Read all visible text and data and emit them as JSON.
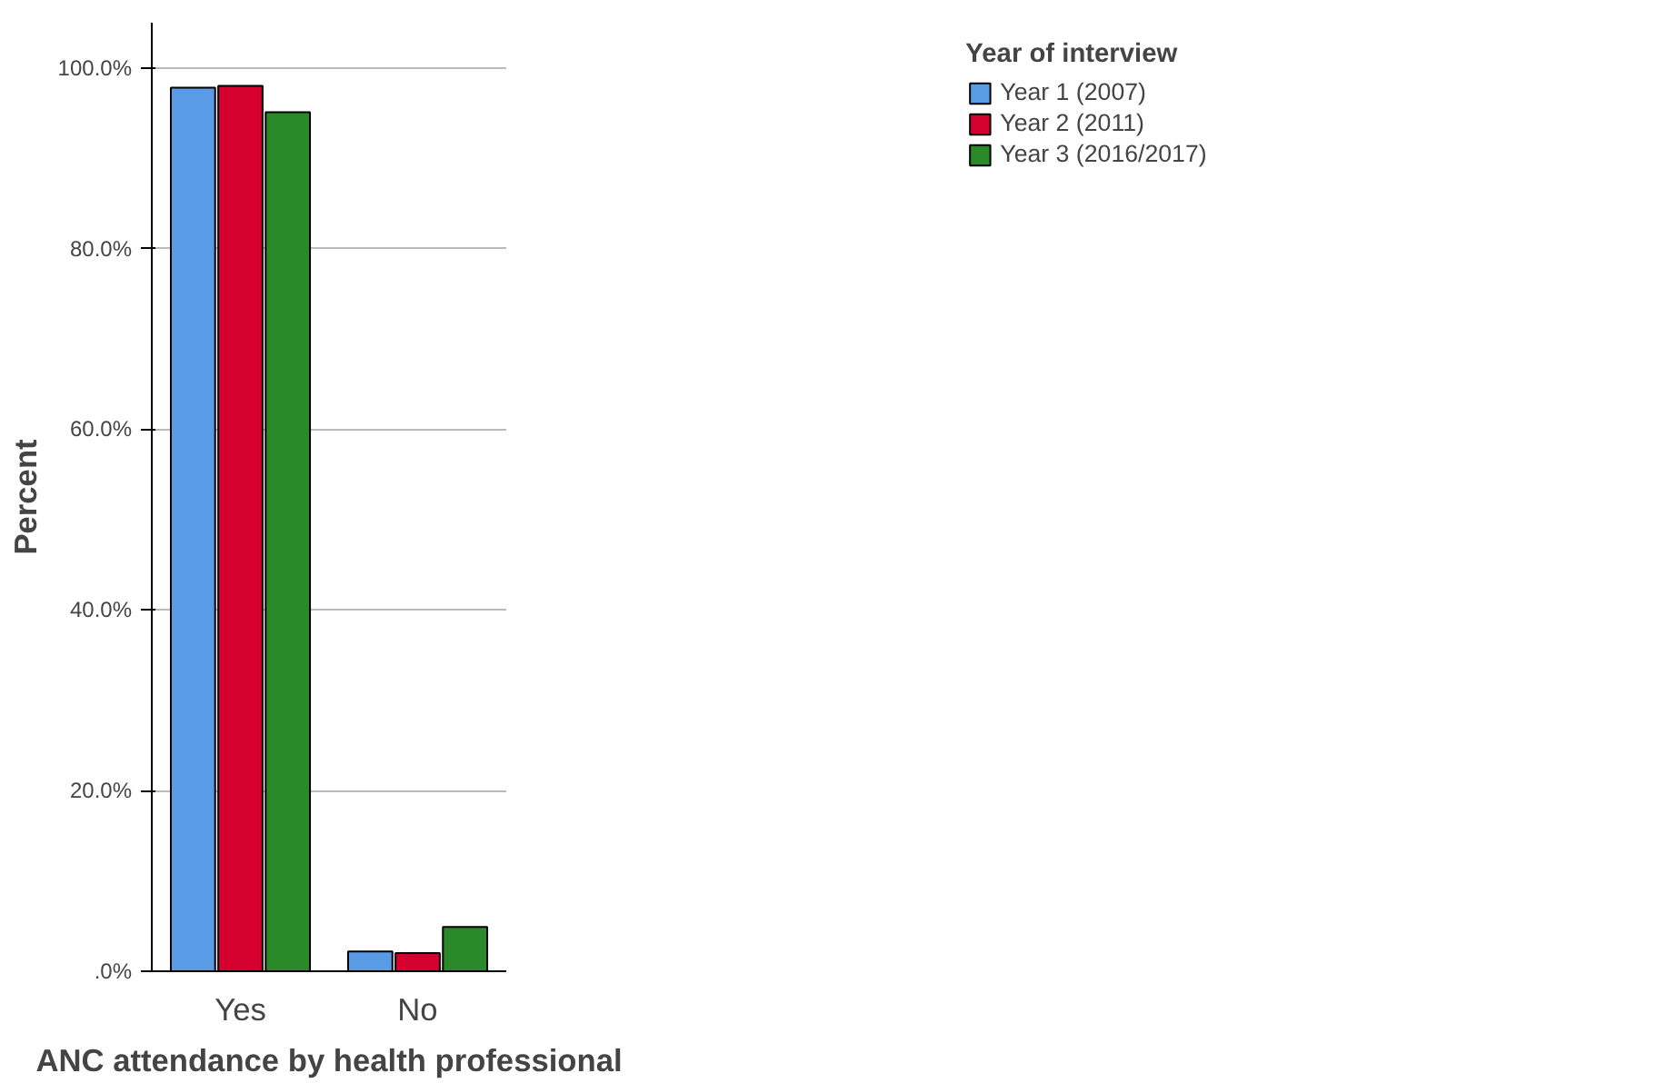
{
  "chart_data": {
    "type": "bar",
    "xlabel": "ANC attendance by health professional",
    "ylabel": "Percent",
    "legend_title": "Year of interview",
    "categories": [
      "Yes",
      "No"
    ],
    "series": [
      {
        "name": "Year 1 (2007)",
        "color": "#5a9be5",
        "values": [
          97.8,
          2.2
        ]
      },
      {
        "name": "Year 2 (2011)",
        "color": "#d6002f",
        "values": [
          98.0,
          2.0
        ]
      },
      {
        "name": "Year 3 (2016/2017)",
        "color": "#2a8a2a",
        "values": [
          95.1,
          4.9
        ]
      }
    ],
    "ylim": [
      0,
      105
    ],
    "yticks": [
      {
        "value": 0,
        "label": ".0%"
      },
      {
        "value": 20,
        "label": "20.0%"
      },
      {
        "value": 40,
        "label": "40.0%"
      },
      {
        "value": 60,
        "label": "60.0%"
      },
      {
        "value": 80,
        "label": "80.0%"
      },
      {
        "value": 100,
        "label": "100.0%"
      }
    ],
    "grid": "y",
    "legend": "top right"
  }
}
